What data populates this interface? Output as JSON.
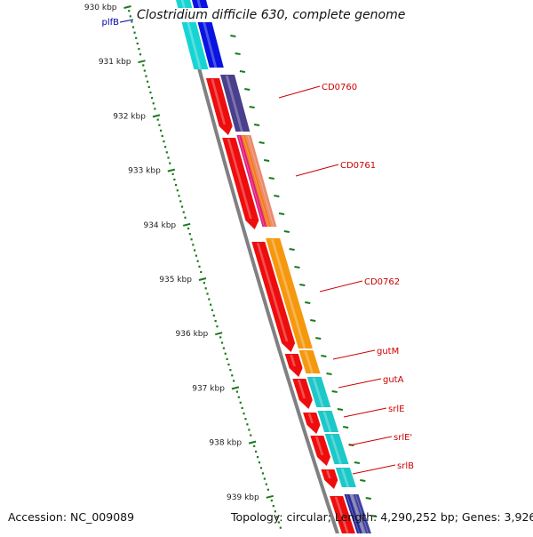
{
  "title": "Clostridium difficile 630, complete genome",
  "accession_label": "Accession: NC_009089",
  "summary_label": "Topology: circular; Length: 4,290,252 bp; Genes: 3,926",
  "colors": {
    "backbone": "#808080",
    "tick": "#1a7a1a",
    "gene_label": "#cc0000",
    "pre_gene_label": "#0000aa"
  },
  "scale_ticks": [
    "930 kbp",
    "931 kbp",
    "932 kbp",
    "933 kbp",
    "934 kbp",
    "935 kbp",
    "936 kbp",
    "937 kbp",
    "938 kbp",
    "939 kbp"
  ],
  "gene_labels": [
    "plfB",
    "CD0760",
    "CD0761",
    "CD0762",
    "gutM",
    "gutA",
    "srlE",
    "srlE'",
    "srlB"
  ]
}
